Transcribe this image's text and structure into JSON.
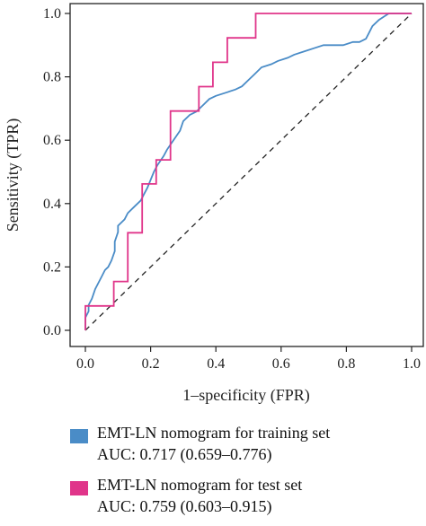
{
  "chart_data": {
    "type": "line",
    "xlabel": "1–specificity (FPR)",
    "ylabel": "Sensitivity (TPR)",
    "xlim": [
      0,
      1
    ],
    "ylim": [
      0,
      1
    ],
    "x_ticks": [
      "0.0",
      "0.2",
      "0.4",
      "0.6",
      "0.8",
      "1.0"
    ],
    "y_ticks": [
      "0.0",
      "0.2",
      "0.4",
      "0.6",
      "0.8",
      "1.0"
    ],
    "grid": false,
    "reference_line": {
      "style": "dashed",
      "from": [
        0,
        0
      ],
      "to": [
        1,
        1
      ]
    },
    "series": [
      {
        "name": "EMT-LN nomogram for training set",
        "auc_label": "AUC: 0.717 (0.659–0.776)",
        "color": "#4a8cc7",
        "points": [
          [
            0.0,
            0.0
          ],
          [
            0.0,
            0.04
          ],
          [
            0.01,
            0.06
          ],
          [
            0.01,
            0.08
          ],
          [
            0.02,
            0.1
          ],
          [
            0.03,
            0.13
          ],
          [
            0.04,
            0.15
          ],
          [
            0.05,
            0.17
          ],
          [
            0.06,
            0.19
          ],
          [
            0.07,
            0.2
          ],
          [
            0.08,
            0.22
          ],
          [
            0.09,
            0.25
          ],
          [
            0.09,
            0.28
          ],
          [
            0.1,
            0.31
          ],
          [
            0.1,
            0.33
          ],
          [
            0.12,
            0.35
          ],
          [
            0.13,
            0.37
          ],
          [
            0.15,
            0.39
          ],
          [
            0.17,
            0.41
          ],
          [
            0.18,
            0.43
          ],
          [
            0.19,
            0.45
          ],
          [
            0.21,
            0.5
          ],
          [
            0.22,
            0.52
          ],
          [
            0.24,
            0.55
          ],
          [
            0.25,
            0.57
          ],
          [
            0.27,
            0.6
          ],
          [
            0.29,
            0.63
          ],
          [
            0.3,
            0.66
          ],
          [
            0.32,
            0.68
          ],
          [
            0.34,
            0.69
          ],
          [
            0.36,
            0.71
          ],
          [
            0.38,
            0.73
          ],
          [
            0.4,
            0.74
          ],
          [
            0.43,
            0.75
          ],
          [
            0.46,
            0.76
          ],
          [
            0.48,
            0.77
          ],
          [
            0.5,
            0.79
          ],
          [
            0.52,
            0.81
          ],
          [
            0.54,
            0.83
          ],
          [
            0.57,
            0.84
          ],
          [
            0.59,
            0.85
          ],
          [
            0.62,
            0.86
          ],
          [
            0.64,
            0.87
          ],
          [
            0.67,
            0.88
          ],
          [
            0.7,
            0.89
          ],
          [
            0.73,
            0.9
          ],
          [
            0.76,
            0.9
          ],
          [
            0.79,
            0.9
          ],
          [
            0.82,
            0.91
          ],
          [
            0.84,
            0.91
          ],
          [
            0.86,
            0.92
          ],
          [
            0.87,
            0.94
          ],
          [
            0.88,
            0.96
          ],
          [
            0.9,
            0.98
          ],
          [
            0.93,
            1.0
          ],
          [
            1.0,
            1.0
          ]
        ]
      },
      {
        "name": "EMT-LN nomogram for test set",
        "auc_label": "AUC: 0.759 (0.603–0.915)",
        "color": "#e0358a",
        "points": [
          [
            0.0,
            0.0
          ],
          [
            0.0,
            0.077
          ],
          [
            0.087,
            0.077
          ],
          [
            0.087,
            0.154
          ],
          [
            0.13,
            0.154
          ],
          [
            0.13,
            0.308
          ],
          [
            0.174,
            0.308
          ],
          [
            0.174,
            0.462
          ],
          [
            0.217,
            0.462
          ],
          [
            0.217,
            0.538
          ],
          [
            0.261,
            0.538
          ],
          [
            0.261,
            0.692
          ],
          [
            0.348,
            0.692
          ],
          [
            0.348,
            0.769
          ],
          [
            0.391,
            0.769
          ],
          [
            0.391,
            0.846
          ],
          [
            0.435,
            0.846
          ],
          [
            0.435,
            0.923
          ],
          [
            0.522,
            0.923
          ],
          [
            0.522,
            1.0
          ],
          [
            1.0,
            1.0
          ]
        ]
      }
    ]
  }
}
